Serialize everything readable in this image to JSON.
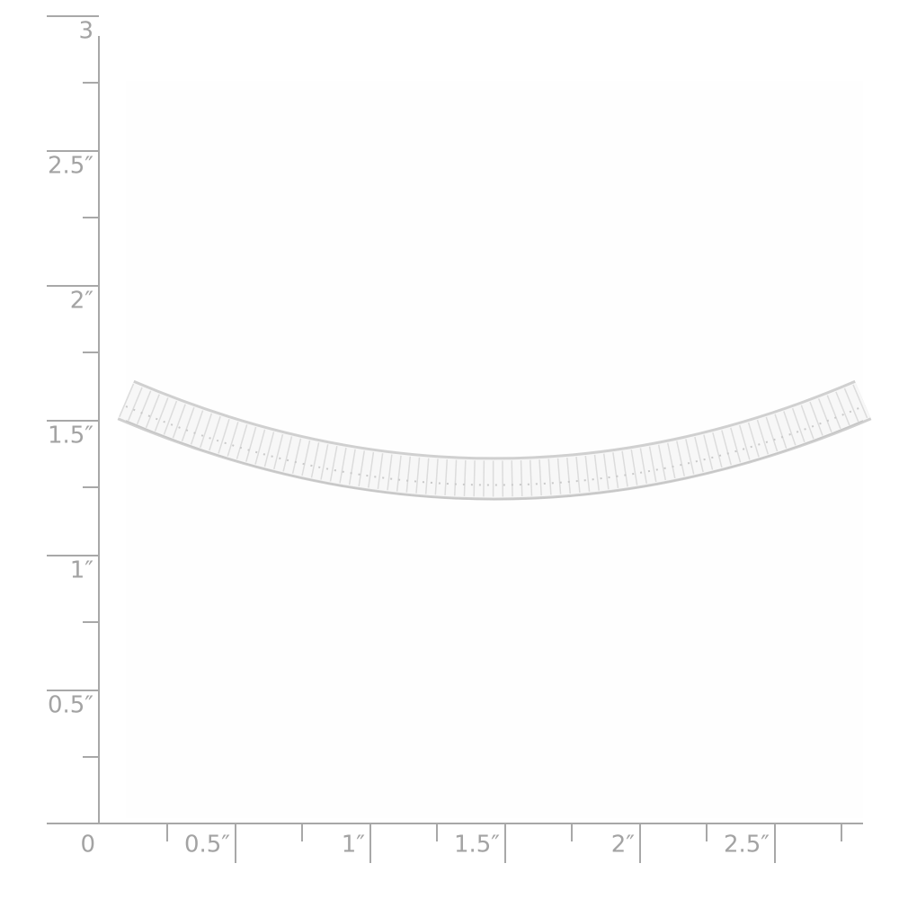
{
  "ruler": {
    "vertical_labels": [
      "3",
      "2.5″",
      "2″",
      "1.5″",
      "1″",
      "0.5″"
    ],
    "horizontal_labels": [
      "0",
      "0.5″",
      "1″",
      "1.5″",
      "2″",
      "2.5″"
    ]
  }
}
